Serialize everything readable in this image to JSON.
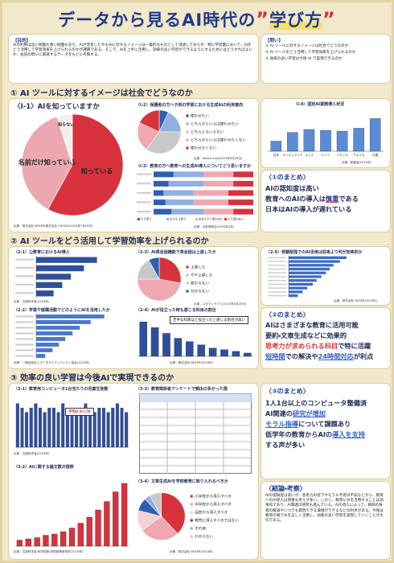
{
  "header": {
    "title": "データから見るAI時代の",
    "title_quote_open": "”",
    "title_emph": "学び方",
    "title_quote_close": "”"
  },
  "purpose": {
    "heading": "【目的】",
    "text": "AIの利用は良い側面も悪い側面もあり、AIが普及した今もAIに対するイメージは一義的なものとして浸透しておらず、特に学習面において、AIをどう活用して学習効率を上げられるのかが課題である。そこで、AIを上手に活用し、効率の良い学習ができるようにするためにはどうすればよいか、右記の問いに関連するデータをもとに考察する。"
  },
  "questions": {
    "heading": "【問い】",
    "items": [
      "① AI ツールに対するイメージは社会でどうなのか",
      "② AI ツールをどう活用して学習効率を上げられるのか",
      "③ 効率の良い学習は今後 AI で実現できるのか"
    ]
  },
  "section1": {
    "heading": "① AI ツールに対するイメージは社会でどうなのか",
    "chart1": {
      "type": "pie",
      "title": "〈I-1〉AIを知っていますか",
      "categories": [
        "知っている",
        "名前だけ知っている",
        "知らない"
      ],
      "values": [
        58,
        37,
        5
      ],
      "colors": [
        "#d8323c",
        "#eca8b0",
        "#f4f0f0"
      ],
      "legend": "on-slices",
      "source": "出典：株式会社 NEXER・株式会社 CROSIA(2024年7月29日)"
    },
    "chart2": {
      "type": "pie",
      "title": "〈I-2〉保護者の方へ子供の学習における生成AIの利用意向",
      "categories": [
        "使わせたい",
        "どちらかといえば使わせたい",
        "どちらともいえない",
        "どちらかといえば使わせたくない",
        "使わせたくない"
      ],
      "values": [
        7,
        18,
        35,
        22,
        18
      ],
      "colors": [
        "#2f5fb3",
        "#8fb0e0",
        "#c8c8c8",
        "#f0a8b0",
        "#d8323c"
      ],
      "legend": "right",
      "source": "出典：atama plus(2023年8月28日)"
    },
    "chart3": {
      "type": "stacked",
      "title": "〈I-3〉教育の方へ教育への生成AI導入についてどう思いますか",
      "series": [
        {
          "name": "そう思う",
          "color": "#2f5fb3",
          "values": [
            20,
            15,
            10,
            12,
            18
          ]
        },
        {
          "name": "ややそう思う",
          "color": "#8fb0e0",
          "values": [
            30,
            35,
            30,
            28,
            32
          ]
        },
        {
          "name": "あまりそう思わない",
          "color": "#f0a8b0",
          "values": [
            30,
            30,
            35,
            35,
            30
          ]
        },
        {
          "name": "そう思わない",
          "color": "#d8323c",
          "values": [
            20,
            20,
            25,
            25,
            20
          ]
        }
      ],
      "xlim": [
        0,
        100
      ],
      "source": "出典：丸紅育英会(2024年2月)"
    },
    "chart4": {
      "type": "vbar",
      "title": "〈I-4〉国別AI業務導入状況",
      "categories": [
        "日本",
        "オーストラリア",
        "スイス",
        "ドイツ",
        "フランス",
        "アメリカ",
        "中国"
      ],
      "values": [
        24,
        45,
        52,
        50,
        48,
        55,
        78
      ],
      "ylim": [
        0,
        100
      ],
      "color": "#5b8bd6",
      "source": "出典：総務省(2019年)"
    },
    "summary": {
      "heading": "〈①のまとめ〉",
      "lines": [
        [
          {
            "text": "AIの認知度は高い"
          }
        ],
        [
          {
            "text": "教育へのAIの導入は"
          },
          {
            "text": "慎重",
            "style": "red-underline"
          },
          {
            "text": "である"
          }
        ],
        [
          {
            "text": "日本はAIの導入が遅れている"
          }
        ]
      ]
    }
  },
  "section2": {
    "heading": "② AI ツールをどう活用して学習効率を上げられるのか",
    "chart1": {
      "type": "hbar",
      "title": "〈2-1〉公教育におけるAI導入",
      "values": [
        70,
        55,
        40,
        30,
        20
      ],
      "xlim": [
        0,
        100
      ],
      "color": "#2f4f9e",
      "source": "出典：文部科学省(2024年)"
    },
    "chart2": {
      "type": "hbar",
      "title": "〈2-2〉学業や就職活動でどのようにAIを活用したか",
      "values": [
        75,
        60,
        48,
        40,
        32,
        25,
        18,
        10
      ],
      "xlim": [
        0,
        100
      ],
      "color": "#4a78c8",
      "source": "出典：一般社団法人データサイエンティスト協会(2024年)"
    },
    "chart3": {
      "type": "pie",
      "title": "〈2-3〉AI英会話機能で英会話は上達したか",
      "categories": [
        "上達した",
        "やや上達した",
        "変わらない",
        "分からない"
      ],
      "values": [
        28,
        47,
        17,
        8
      ],
      "colors": [
        "#d8323c",
        "#f0a8b0",
        "#c8c8c8",
        "#2f5fb3"
      ],
      "legend": "right",
      "source": "出典：スタディサプリ(2025年3月25日)"
    },
    "chart4": {
      "type": "vbar",
      "title": "〈2-4〉AIが役立った時も感じる科目の割合",
      "annotation": "苦手な科目ほど役立ったと感じる割合が高い",
      "values": [
        42,
        35,
        28,
        22,
        18,
        14,
        10,
        8,
        6,
        4
      ],
      "ylim": [
        0,
        50
      ],
      "color": "#2f4f9e",
      "source": "出典：株式会社 NEXER(2024年)"
    },
    "chart5": {
      "type": "hbar",
      "title": "〈2-5〉受験勉強でのAI活用は従来より何が効率的か",
      "values": [
        62,
        55,
        48,
        44,
        40,
        35,
        30,
        26,
        20,
        15,
        10
      ],
      "xlim": [
        0,
        100
      ],
      "color": "#3b6cc4",
      "source": "出典：株式会社 NEXER(2025年)"
    },
    "summary": {
      "heading": "〈②のまとめ〉",
      "lines": [
        [
          {
            "text": "AIはさまざまな教育に活用可能"
          }
        ],
        [
          {
            "text": "要約・文章生成などに効果的"
          }
        ],
        [
          {
            "text": "思考力が求められる科目",
            "style": "red"
          },
          {
            "text": "で特に活躍"
          }
        ],
        [
          {
            "text": "短時間",
            "style": "blue-underline"
          },
          {
            "text": "での解決や"
          },
          {
            "text": "24時間対応",
            "style": "blue-underline"
          },
          {
            "text": "が利点"
          }
        ]
      ]
    }
  },
  "section3": {
    "heading": "③ 効率の良い学習は今後AIで実現できるのか",
    "chart1": {
      "type": "vbar",
      "title": "〈3-1〉教育用コンピュータ1台当たりの児童生徒数",
      "annotation": "平均0.9人/台",
      "values": [
        1.0,
        0.9,
        0.8,
        0.9,
        1.0,
        0.9,
        0.8,
        0.9,
        0.9,
        0.8,
        1.0,
        0.9,
        0.9,
        0.8,
        0.9,
        1.0,
        0.9,
        0.8,
        0.9,
        0.9,
        0.8,
        0.9,
        1.0,
        0.9,
        0.8
      ],
      "ylim": [
        0,
        1.2
      ],
      "color": "#2f4f9e",
      "source": "出典：文部科学省(2024年)"
    },
    "chart2": {
      "type": "vbar",
      "title": "〈3-2〉AIに関する論文数の推移",
      "values": [
        5,
        6,
        7,
        9,
        10,
        12,
        15,
        19,
        24,
        30,
        37,
        45,
        52
      ],
      "ylim": [
        0,
        60
      ],
      "color": "#d8323c",
      "source": "出典：文部科学省 科学技術・学術政策研究所(2024年)"
    },
    "chart3": {
      "title": "〈3-3〉教育関係者アンケートで頻出の多かった語"
    },
    "chart4": {
      "type": "pie",
      "title": "〈3-4〉文章生成AIを学校教育に取り入れるべきか",
      "categories": [
        "小学校から導入すべき",
        "中学校から導入すべき",
        "高校から導入すべき",
        "教育に導入すべきではない",
        "その他",
        "わからない"
      ],
      "values": [
        38,
        27,
        14,
        9,
        4,
        8
      ],
      "colors": [
        "#d8323c",
        "#f0a8b0",
        "#f6d0d4",
        "#2f5fb3",
        "#8fb0e0",
        "#c8c8c8"
      ],
      "legend": "right",
      "source": "出典：株式会社 NEXER(2023年)"
    },
    "summary": {
      "heading": "〈③のまとめ〉",
      "lines": [
        [
          {
            "text": "1人1台以上のコンピュータ整備済"
          }
        ],
        [
          {
            "text": "AI関連の"
          },
          {
            "text": "研究が増加",
            "style": "blue-underline"
          }
        ],
        [
          {
            "text": "モラル指導",
            "style": "blue-underline"
          },
          {
            "text": "について課題あり"
          }
        ],
        [
          {
            "text": "低学年の教育からAIの"
          },
          {
            "text": "導入を支持",
            "style": "blue-underline"
          }
        ],
        [
          {
            "text": "する声が多い"
          }
        ]
      ]
    }
  },
  "conclusion": {
    "heading": "〈結論・考察〉",
    "text": "AIの認知度は高いが、思考力の低下やモラル不足の不安などから、教育へのAI導入は慎重な考えが多い。しかし、教育にAIを活用することは効果的であり、AI関連の研究も進んでいる。AIの導入によって、教師の負担の軽減やいつでも質問できる環境ができるなどの利点がある。今後は教育の場でAIを正しく活用し、効率の良い学習を実現していくことが大切である。"
  }
}
